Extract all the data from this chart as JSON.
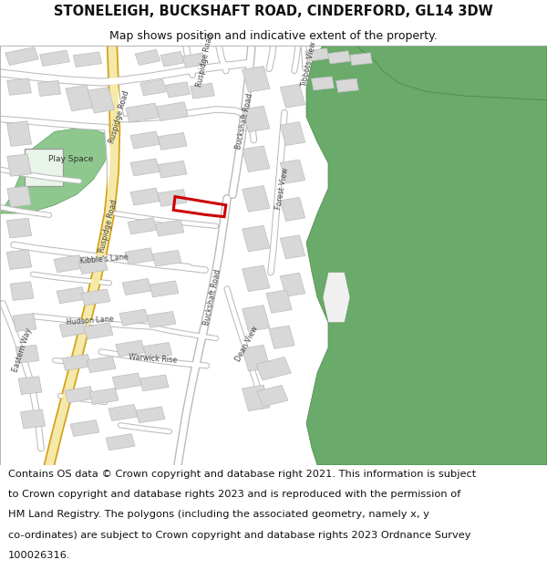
{
  "title_line1": "STONELEIGH, BUCKSHAFT ROAD, CINDERFORD, GL14 3DW",
  "title_line2": "Map shows position and indicative extent of the property.",
  "footer_lines": [
    "Contains OS data © Crown copyright and database right 2021. This information is subject",
    "to Crown copyright and database rights 2023 and is reproduced with the permission of",
    "HM Land Registry. The polygons (including the associated geometry, namely x, y",
    "co-ordinates) are subject to Crown copyright and database rights 2023 Ordnance Survey",
    "100026316."
  ],
  "bg_color": "#ffffff",
  "map_bg": "#f0f0f0",
  "building_fill": "#d8d8d8",
  "building_stroke": "#bbbbbb",
  "road_fill": "#ffffff",
  "road_stroke": "#cccccc",
  "main_road_fill": "#f5e9aa",
  "main_road_stroke": "#d4a017",
  "green_fill": "#6aaa6a",
  "green_stroke": "#4a8a4a",
  "play_fill": "#8ec88e",
  "play_stroke": "#5a9a5a",
  "property_color": "#cc0000",
  "title_fontsize": 10.5,
  "subtitle_fontsize": 9.0,
  "footer_fontsize": 8.2,
  "label_fontsize": 5.8
}
